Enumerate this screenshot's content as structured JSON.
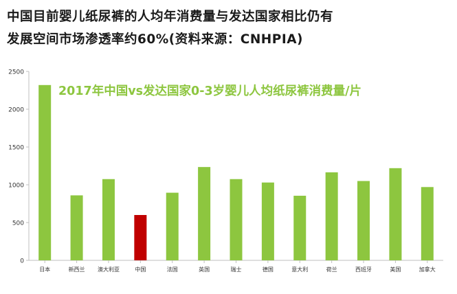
{
  "headline": {
    "line1": "中国目前婴儿纸尿裤的人均年消费量与发达国家相比仍有",
    "line2": "发展空间市场渗透率约60%(资料来源：CNHPIA)"
  },
  "chart_data": {
    "type": "bar",
    "title": "2017年中国vs发达国家0-3岁婴儿人均纸尿裤消费量/片",
    "categories": [
      "日本",
      "新西兰",
      "澳大利亚",
      "中国",
      "法国",
      "英国",
      "瑞士",
      "德国",
      "意大利",
      "荷兰",
      "西班牙",
      "美国",
      "加拿大"
    ],
    "values": [
      2320,
      860,
      1075,
      600,
      895,
      1235,
      1075,
      1030,
      855,
      1165,
      1050,
      1220,
      970
    ],
    "highlight": "中国",
    "ylim": [
      0,
      2500
    ],
    "yticks": [
      0,
      500,
      1000,
      1500,
      2000,
      2500
    ],
    "colors": {
      "bar": "#8dc63f",
      "highlight": "#c00000",
      "title": "#8dc63f",
      "axis": "#bfbfbf"
    },
    "grid": false,
    "xlabel": "",
    "ylabel": ""
  }
}
